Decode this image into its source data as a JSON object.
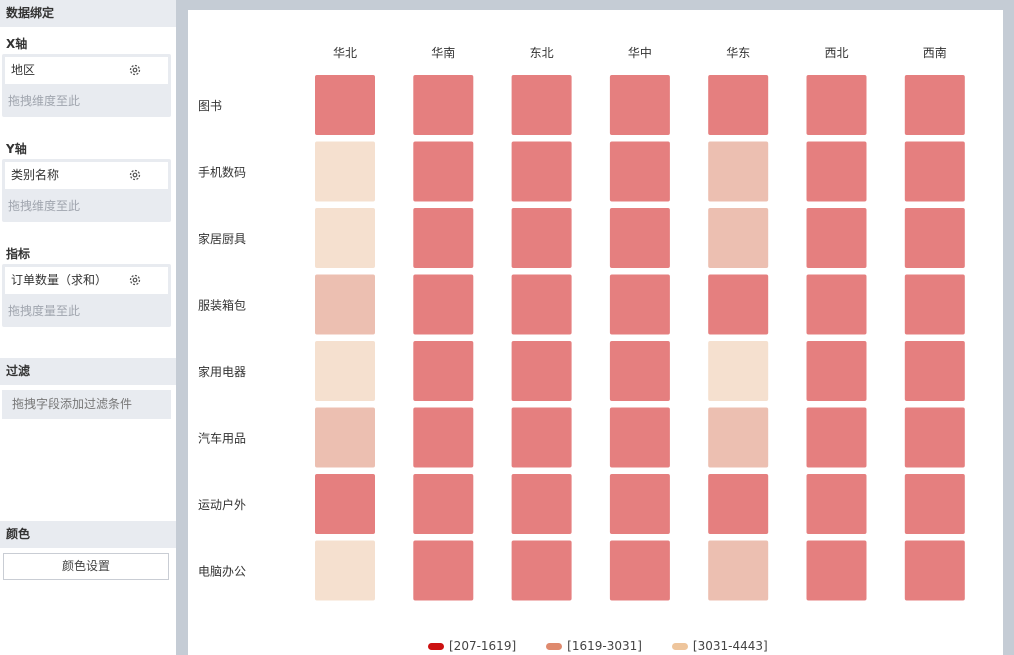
{
  "sidebar": {
    "title": "数据绑定",
    "x_axis": {
      "label": "X轴",
      "field": "地区",
      "hint": "拖拽维度至此"
    },
    "y_axis": {
      "label": "Y轴",
      "field": "类别名称",
      "hint": "拖拽维度至此"
    },
    "metric": {
      "label": "指标",
      "field": "订单数量（求和）",
      "hint": "拖拽度量至此"
    },
    "filter": {
      "title": "过滤",
      "hint": "拖拽字段添加过滤条件"
    },
    "color": {
      "title": "颜色",
      "button": "颜色设置"
    }
  },
  "chart_data": {
    "type": "heatmap",
    "x_categories": [
      "华北",
      "华南",
      "东北",
      "华中",
      "华东",
      "西北",
      "西南"
    ],
    "y_categories": [
      "图书",
      "手机数码",
      "家居厨具",
      "服装箱包",
      "家用电器",
      "汽车用品",
      "运动户外",
      "电脑办公"
    ],
    "cell_bins": [
      [
        0,
        0,
        0,
        0,
        0,
        0,
        0
      ],
      [
        2,
        0,
        0,
        0,
        1,
        0,
        0
      ],
      [
        2,
        0,
        0,
        0,
        1,
        0,
        0
      ],
      [
        1,
        0,
        0,
        0,
        0,
        0,
        0
      ],
      [
        2,
        0,
        0,
        0,
        2,
        0,
        0
      ],
      [
        1,
        0,
        0,
        0,
        1,
        0,
        0
      ],
      [
        0,
        0,
        0,
        0,
        0,
        0,
        0
      ],
      [
        2,
        0,
        0,
        0,
        1,
        0,
        0
      ]
    ],
    "cell_colors": [
      "#e57f7f",
      "#ecbfb1",
      "#f5e0cf"
    ],
    "legend": [
      {
        "label": "[207-1619]",
        "color": "#cc1111"
      },
      {
        "label": "[1619-3031]",
        "color": "#df8a6e"
      },
      {
        "label": "[3031-4443]",
        "color": "#eec59c"
      }
    ]
  }
}
